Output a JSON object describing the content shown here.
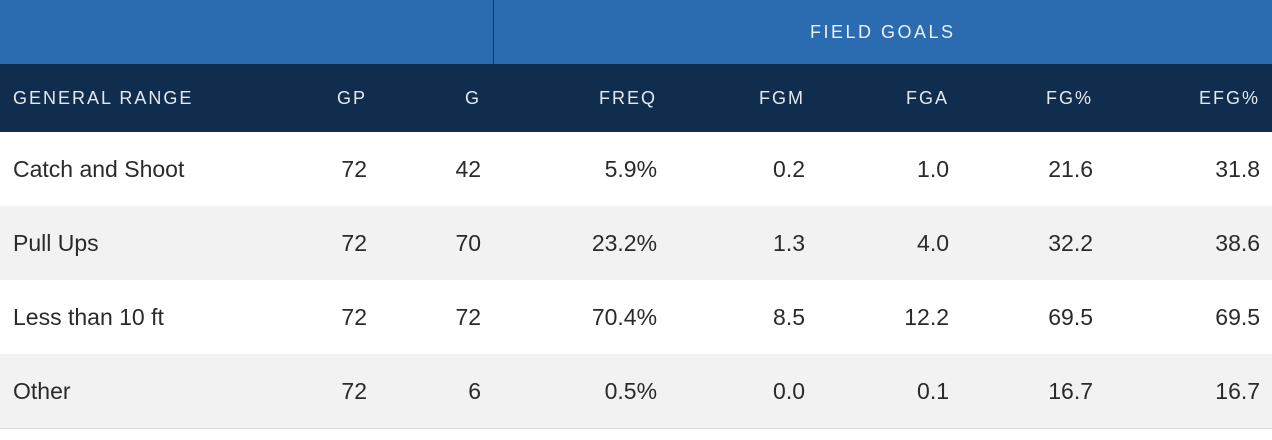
{
  "table": {
    "group_header": "FIELD GOALS",
    "columns": [
      "GENERAL RANGE",
      "GP",
      "G",
      "FREQ",
      "FGM",
      "FGA",
      "FG%",
      "EFG%"
    ],
    "rows": [
      [
        "Catch and Shoot",
        "72",
        "42",
        "5.9%",
        "0.2",
        "1.0",
        "21.6",
        "31.8"
      ],
      [
        "Pull Ups",
        "72",
        "70",
        "23.2%",
        "1.3",
        "4.0",
        "32.2",
        "38.6"
      ],
      [
        "Less than 10 ft",
        "72",
        "72",
        "70.4%",
        "8.5",
        "12.2",
        "69.5",
        "69.5"
      ],
      [
        "Other",
        "72",
        "6",
        "0.5%",
        "0.0",
        "0.1",
        "16.7",
        "16.7"
      ]
    ]
  },
  "colors": {
    "group_header_bg": "#2b6cb0",
    "column_header_bg": "#112d4e",
    "row_alt_bg": "#f2f2f2"
  }
}
